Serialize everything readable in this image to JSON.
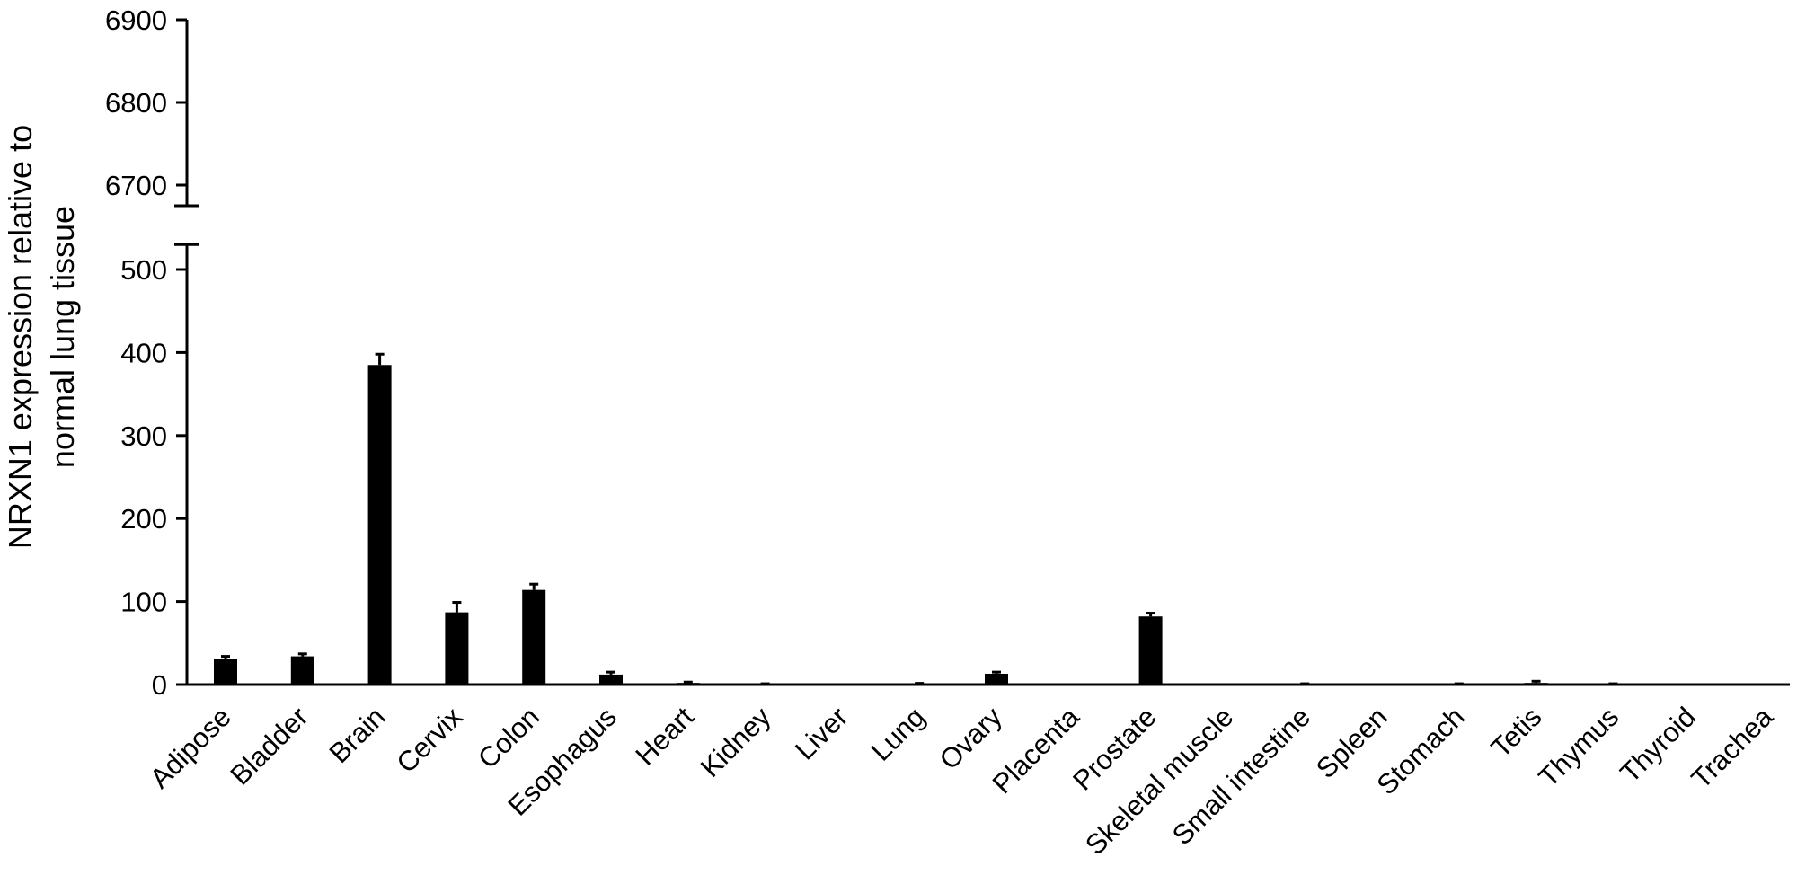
{
  "chart_data": {
    "type": "bar",
    "title": "",
    "ylabel_lines": [
      "NRXN1 expression relative to",
      "normal lung tissue"
    ],
    "xlabel": "",
    "broken_axis": true,
    "lower_segment": {
      "ylim": [
        0,
        530
      ],
      "ticks": [
        0,
        100,
        200,
        300,
        400,
        500
      ]
    },
    "upper_segment": {
      "ylim": [
        6675,
        6900
      ],
      "ticks": [
        6700,
        6800,
        6900
      ]
    },
    "categories": [
      "Adipose",
      "Bladder",
      "Brain",
      "Cervix",
      "Colon",
      "Esophagus",
      "Heart",
      "Kidney",
      "Liver",
      "Lung",
      "Ovary",
      "Placenta",
      "Prostate",
      "Skeletal muscle",
      "Small intestine",
      "Spleen",
      "Stomach",
      "Tetis",
      "Thymus",
      "Thyroid",
      "Trachea"
    ],
    "values": [
      31,
      34,
      385,
      87,
      114,
      12,
      2,
      0.5,
      0,
      1,
      13,
      0,
      82,
      0,
      0.5,
      0,
      0.5,
      2,
      0.5,
      0,
      0
    ],
    "errors": [
      3,
      3,
      13,
      12,
      7,
      3,
      1,
      0.5,
      0,
      0.5,
      2,
      0,
      4,
      0,
      0.5,
      0,
      0.5,
      2,
      0.5,
      0,
      0
    ],
    "bar_color": "#000000",
    "grid": false,
    "legend": "none"
  }
}
